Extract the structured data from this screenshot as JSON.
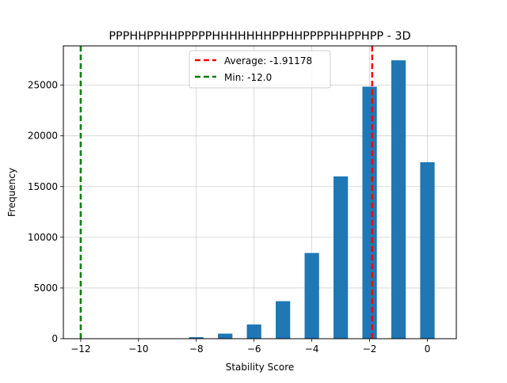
{
  "chart_data": {
    "type": "bar",
    "title": "PPPHHPPHHPPPPPHHHHHHHPPHHPPPPHHPPHPP - 3D",
    "xlabel": "Stability Score",
    "ylabel": "Frequency",
    "xlim": [
      -12.6,
      1.0
    ],
    "ylim": [
      0,
      28870
    ],
    "grid": true,
    "bar_color": "#1f77b4",
    "bar_width": 0.5,
    "bars": [
      {
        "x": -8,
        "value": 150
      },
      {
        "x": -7,
        "value": 500
      },
      {
        "x": -6,
        "value": 1400
      },
      {
        "x": -5,
        "value": 3700
      },
      {
        "x": -4,
        "value": 8450
      },
      {
        "x": -3,
        "value": 16000
      },
      {
        "x": -2,
        "value": 24850
      },
      {
        "x": -1,
        "value": 27450
      },
      {
        "x": 0,
        "value": 17400
      }
    ],
    "x_ticks": [
      -12,
      -10,
      -8,
      -6,
      -4,
      -2,
      0
    ],
    "x_tick_labels": [
      "−12",
      "−10",
      "−8",
      "−6",
      "−4",
      "−2",
      "0"
    ],
    "y_ticks": [
      0,
      5000,
      10000,
      15000,
      20000,
      25000
    ],
    "y_tick_labels": [
      "0",
      "5000",
      "10000",
      "15000",
      "20000",
      "25000"
    ],
    "reference_lines": [
      {
        "label": "Average: -1.91178",
        "x": -1.91178,
        "color": "#ff0000"
      },
      {
        "label": "Min: -12.0",
        "x": -12.0,
        "color": "#008000"
      }
    ],
    "legend_position": "upper center"
  }
}
